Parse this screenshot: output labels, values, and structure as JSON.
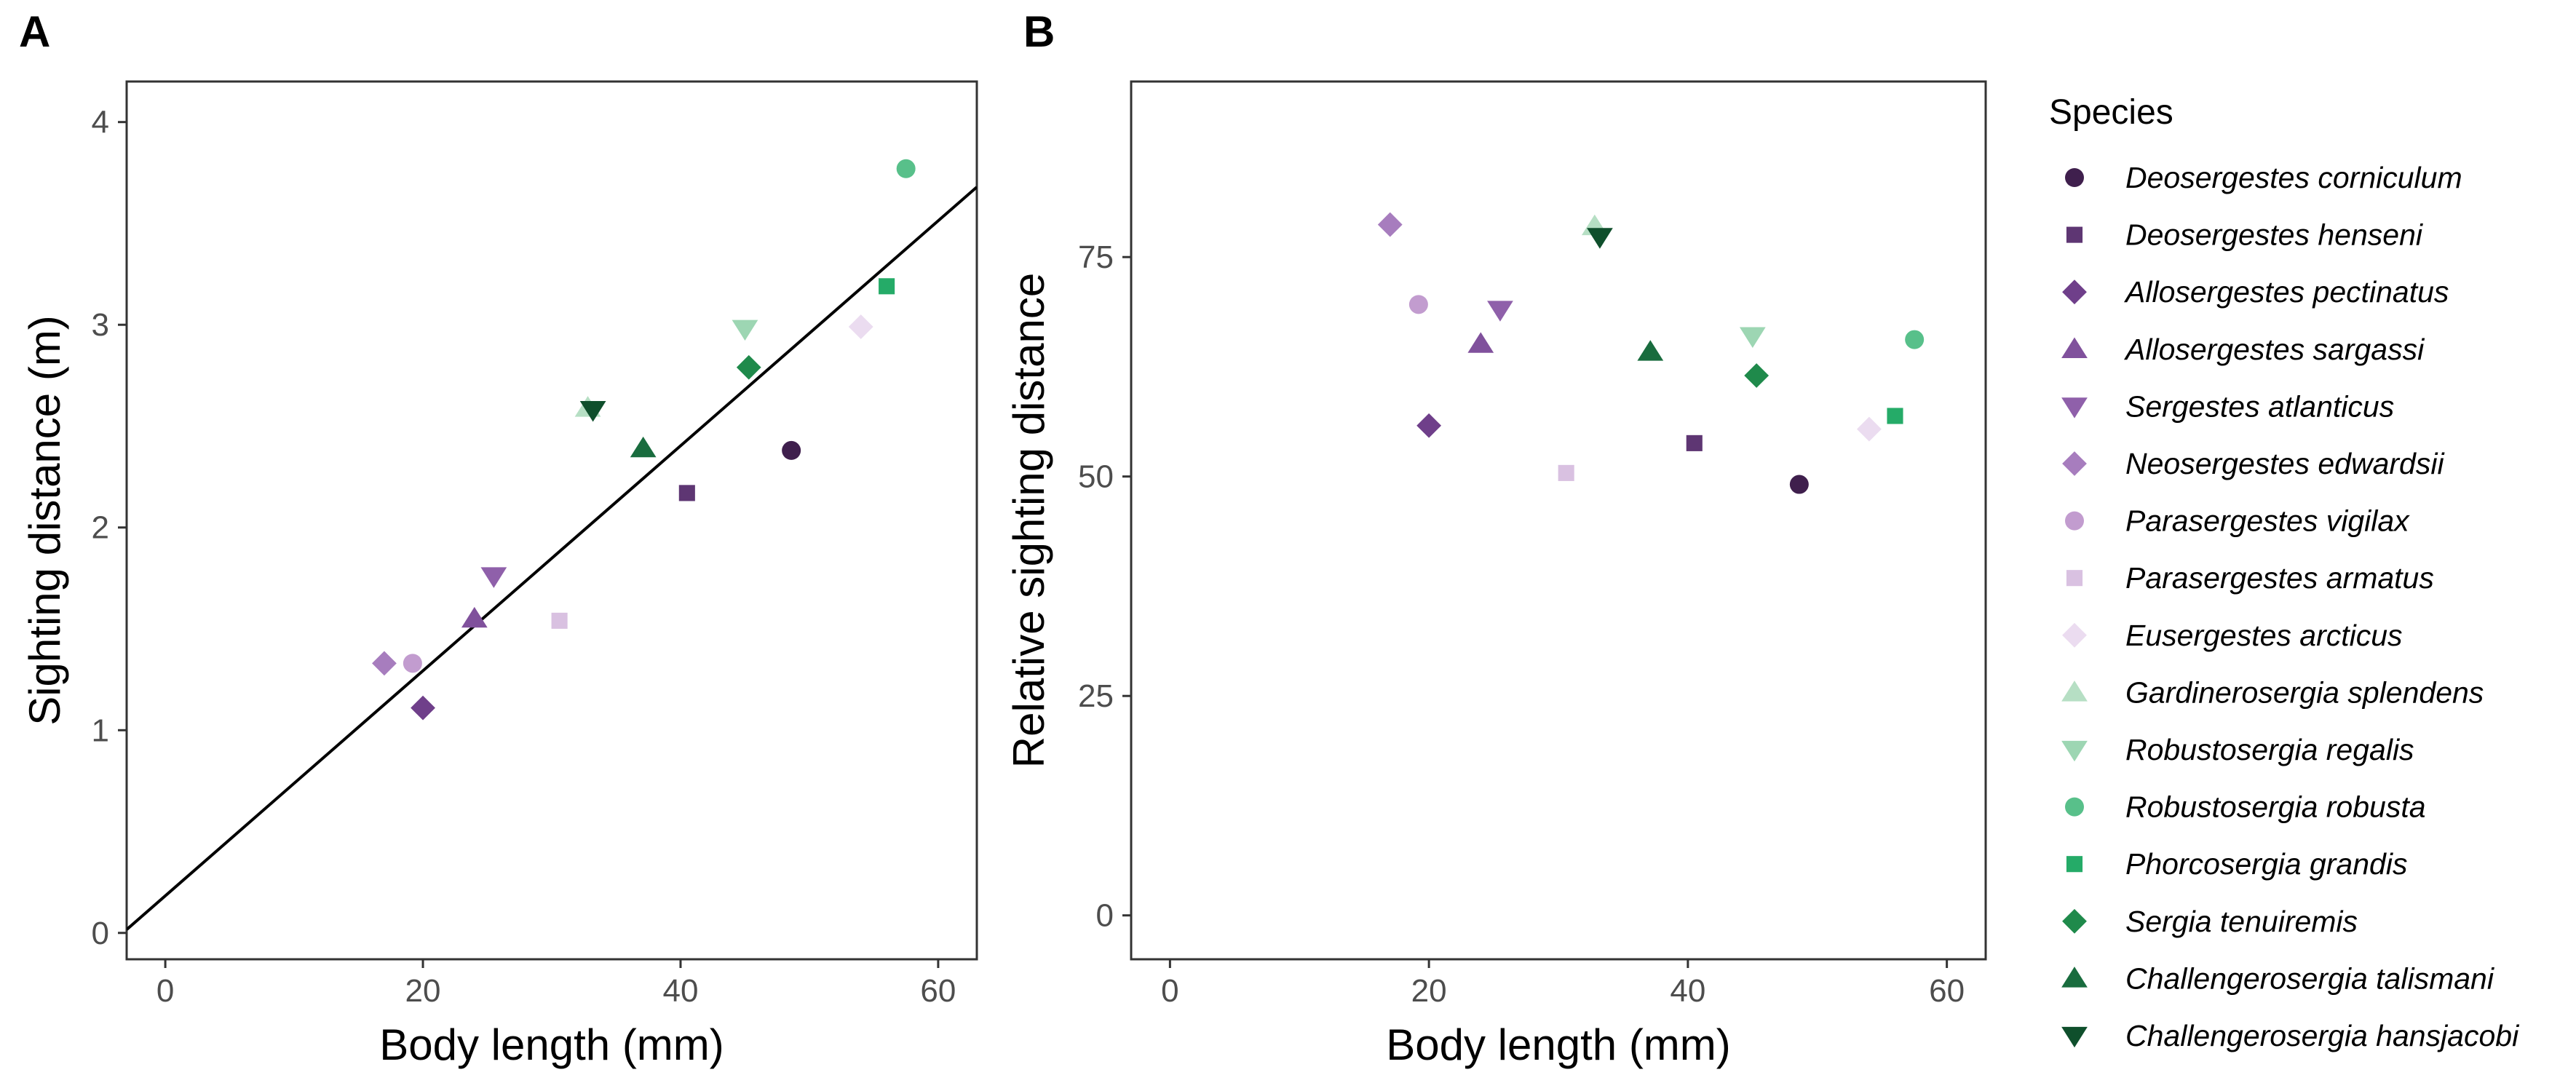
{
  "chart_data": [
    {
      "panel": "A",
      "type": "scatter",
      "xlabel": "Body length (mm)",
      "ylabel": "Sighting distance (m)",
      "xlim": [
        -3,
        63
      ],
      "ylim": [
        -0.13,
        4.2
      ],
      "xticks": [
        0,
        20,
        40,
        60
      ],
      "yticks": [
        0,
        1,
        2,
        3,
        4
      ],
      "grid": false,
      "fit_line": {
        "intercept": 0.183,
        "slope": 0.0555
      },
      "points": [
        {
          "species": "Deosergestes corniculum",
          "x": 48.6,
          "y": 2.38
        },
        {
          "species": "Deosergestes henseni",
          "x": 40.5,
          "y": 2.17
        },
        {
          "species": "Allosergestes pectinatus",
          "x": 20.0,
          "y": 1.11
        },
        {
          "species": "Allosergestes sargassi",
          "x": 24.0,
          "y": 1.55
        },
        {
          "species": "Sergestes atlanticus",
          "x": 25.5,
          "y": 1.76
        },
        {
          "species": "Neosergestes edwardsii",
          "x": 17.0,
          "y": 1.33
        },
        {
          "species": "Parasergestes vigilax",
          "x": 19.2,
          "y": 1.33
        },
        {
          "species": "Parasergestes armatus",
          "x": 30.6,
          "y": 1.54
        },
        {
          "species": "Eusergestes arcticus",
          "x": 54.0,
          "y": 2.99
        },
        {
          "species": "Gardinerosergia splendens",
          "x": 32.8,
          "y": 2.59
        },
        {
          "species": "Robustosergia regalis",
          "x": 45.0,
          "y": 2.98
        },
        {
          "species": "Robustosergia robusta",
          "x": 57.5,
          "y": 3.77
        },
        {
          "species": "Phorcosergia grandis",
          "x": 56.0,
          "y": 3.19
        },
        {
          "species": "Sergia tenuiremis",
          "x": 45.3,
          "y": 2.79
        },
        {
          "species": "Challengerosergia talismani",
          "x": 37.1,
          "y": 2.39
        },
        {
          "species": "Challengerosergia hansjacobi",
          "x": 33.2,
          "y": 2.58
        }
      ]
    },
    {
      "panel": "B",
      "type": "scatter",
      "xlabel": "Body length (mm)",
      "ylabel": "Relative sighting distance",
      "xlim": [
        -3,
        63
      ],
      "ylim": [
        -5,
        95
      ],
      "xticks": [
        0,
        20,
        40,
        60
      ],
      "yticks": [
        0,
        25,
        50,
        75
      ],
      "grid": false,
      "points": [
        {
          "species": "Deosergestes corniculum",
          "x": 48.6,
          "y": 49.1
        },
        {
          "species": "Deosergestes henseni",
          "x": 40.5,
          "y": 53.8
        },
        {
          "species": "Allosergestes pectinatus",
          "x": 20.0,
          "y": 55.8
        },
        {
          "species": "Allosergestes sargassi",
          "x": 24.0,
          "y": 65.1
        },
        {
          "species": "Sergestes atlanticus",
          "x": 25.5,
          "y": 69.0
        },
        {
          "species": "Neosergestes edwardsii",
          "x": 17.0,
          "y": 78.7
        },
        {
          "species": "Parasergestes vigilax",
          "x": 19.2,
          "y": 69.6
        },
        {
          "species": "Parasergestes armatus",
          "x": 30.6,
          "y": 50.4
        },
        {
          "species": "Eusergestes arcticus",
          "x": 54.0,
          "y": 55.4
        },
        {
          "species": "Gardinerosergia splendens",
          "x": 32.8,
          "y": 78.5
        },
        {
          "species": "Robustosergia regalis",
          "x": 45.0,
          "y": 66.0
        },
        {
          "species": "Robustosergia robusta",
          "x": 57.5,
          "y": 65.6
        },
        {
          "species": "Phorcosergia grandis",
          "x": 56.0,
          "y": 56.9
        },
        {
          "species": "Sergia tenuiremis",
          "x": 45.3,
          "y": 61.5
        },
        {
          "species": "Challengerosergia talismani",
          "x": 37.1,
          "y": 64.2
        },
        {
          "species": "Challengerosergia hansjacobi",
          "x": 33.2,
          "y": 77.3
        }
      ]
    }
  ],
  "panel_labels": [
    "A",
    "B"
  ],
  "legend": {
    "title": "Species",
    "placement": "right",
    "entries": [
      {
        "label": "Deosergestes corniculum",
        "shape": "circle",
        "color": "#3f1f4d"
      },
      {
        "label": "Deosergestes henseni",
        "shape": "square",
        "color": "#5e3673"
      },
      {
        "label": "Allosergestes pectinatus",
        "shape": "diamond",
        "color": "#6f3f8a"
      },
      {
        "label": "Allosergestes sargassi",
        "shape": "triangle-up",
        "color": "#80519c"
      },
      {
        "label": "Sergestes atlanticus",
        "shape": "triangle-down",
        "color": "#8f60aa"
      },
      {
        "label": "Neosergestes edwardsii",
        "shape": "diamond",
        "color": "#a77dbe"
      },
      {
        "label": "Parasergestes vigilax",
        "shape": "circle",
        "color": "#c29ccf"
      },
      {
        "label": "Parasergestes armatus",
        "shape": "square",
        "color": "#d9c1e1"
      },
      {
        "label": "Eusergestes arcticus",
        "shape": "diamond",
        "color": "#ebdcf0"
      },
      {
        "label": "Gardinerosergia splendens",
        "shape": "triangle-up",
        "color": "#b6dfc4"
      },
      {
        "label": "Robustosergia regalis",
        "shape": "triangle-down",
        "color": "#9dd6b3"
      },
      {
        "label": "Robustosergia robusta",
        "shape": "circle",
        "color": "#58c08a"
      },
      {
        "label": "Phorcosergia grandis",
        "shape": "square",
        "color": "#25ab68"
      },
      {
        "label": "Sergia tenuiremis",
        "shape": "diamond",
        "color": "#1f8a4b"
      },
      {
        "label": "Challengerosergia talismani",
        "shape": "triangle-up",
        "color": "#196c3e"
      },
      {
        "label": "Challengerosergia hansjacobi",
        "shape": "triangle-down",
        "color": "#0f4f2c"
      }
    ]
  }
}
